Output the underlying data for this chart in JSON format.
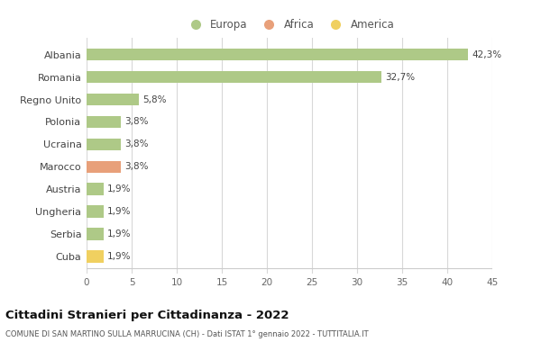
{
  "categories": [
    "Albania",
    "Romania",
    "Regno Unito",
    "Polonia",
    "Ucraina",
    "Marocco",
    "Austria",
    "Ungheria",
    "Serbia",
    "Cuba"
  ],
  "values": [
    42.3,
    32.7,
    5.8,
    3.8,
    3.8,
    3.8,
    1.9,
    1.9,
    1.9,
    1.9
  ],
  "labels": [
    "42,3%",
    "32,7%",
    "5,8%",
    "3,8%",
    "3,8%",
    "3,8%",
    "1,9%",
    "1,9%",
    "1,9%",
    "1,9%"
  ],
  "colors": [
    "#aec987",
    "#aec987",
    "#aec987",
    "#aec987",
    "#aec987",
    "#e8a07a",
    "#aec987",
    "#aec987",
    "#aec987",
    "#f0d060"
  ],
  "legend_labels": [
    "Europa",
    "Africa",
    "America"
  ],
  "legend_colors": [
    "#aec987",
    "#e8a07a",
    "#f0d060"
  ],
  "title": "Cittadini Stranieri per Cittadinanza - 2022",
  "subtitle": "COMUNE DI SAN MARTINO SULLA MARRUCINA (CH) - Dati ISTAT 1° gennaio 2022 - TUTTITALIA.IT",
  "xlim": [
    0,
    45
  ],
  "xticks": [
    0,
    5,
    10,
    15,
    20,
    25,
    30,
    35,
    40,
    45
  ],
  "background_color": "#ffffff",
  "grid_color": "#d8d8d8",
  "bar_height": 0.55
}
